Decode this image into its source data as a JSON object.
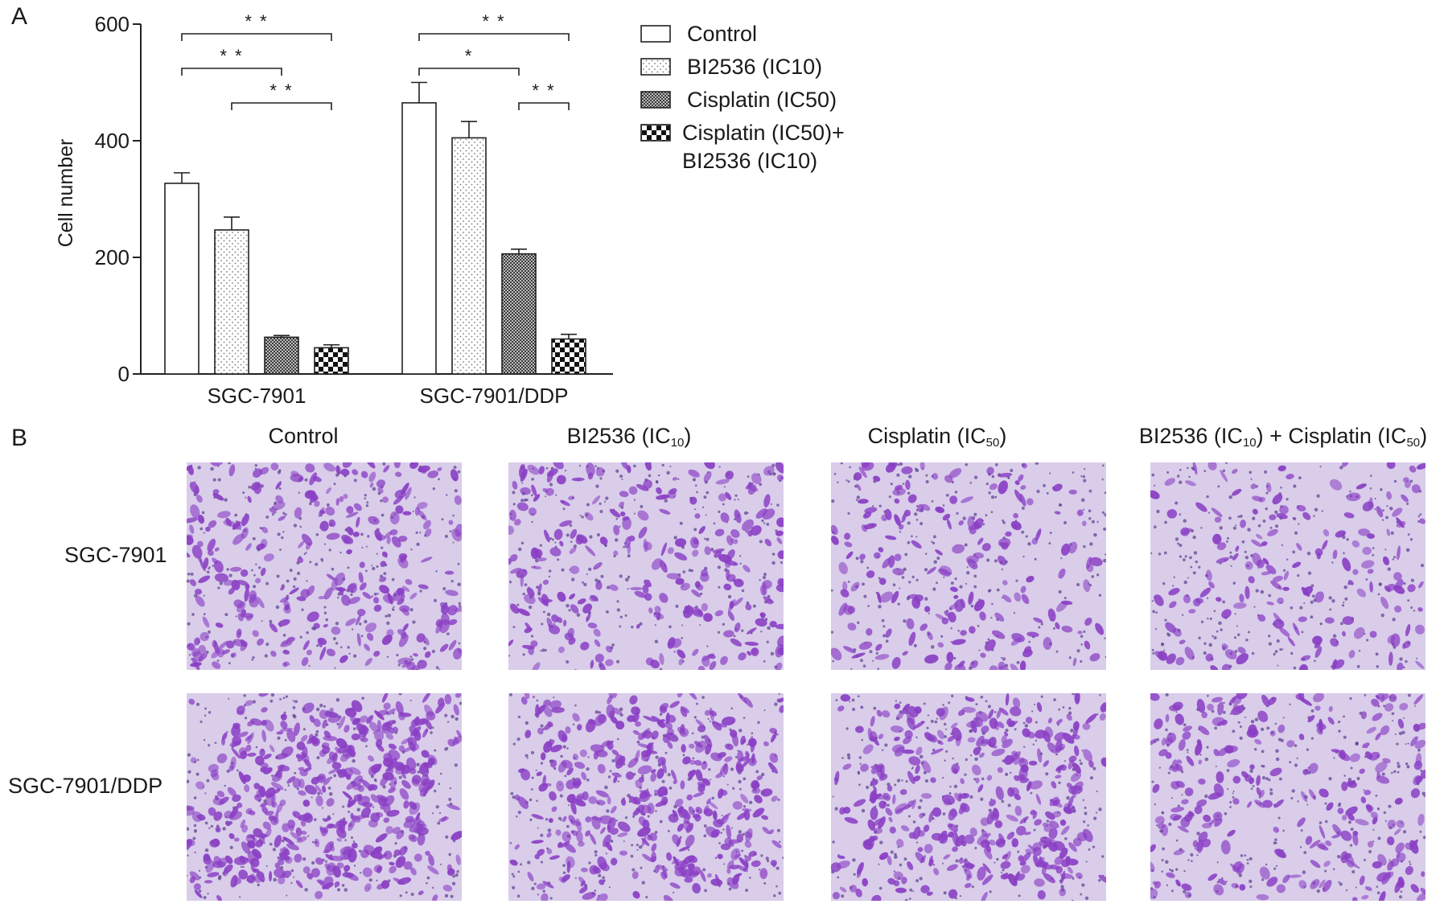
{
  "panel_a_label": "A",
  "panel_b_label": "B",
  "chart_data": {
    "type": "bar",
    "title": "",
    "xlabel": "",
    "ylabel": "Cell number",
    "ylim": [
      0,
      600
    ],
    "yticks": [
      0,
      200,
      400,
      600
    ],
    "categories": [
      "SGC-7901",
      "SGC-7901/DDP"
    ],
    "series": [
      {
        "name": "Control",
        "values": [
          327,
          465
        ],
        "errors": [
          18,
          35
        ],
        "pattern": "plain"
      },
      {
        "name": "BI2536 (IC10)",
        "values": [
          247,
          405
        ],
        "errors": [
          22,
          28
        ],
        "pattern": "dots"
      },
      {
        "name": "Cisplatin (IC50)",
        "values": [
          63,
          206
        ],
        "errors": [
          3,
          8
        ],
        "pattern": "dense"
      },
      {
        "name": "Cisplatin (IC50)+\nBI2536 (IC10)",
        "values": [
          45,
          60
        ],
        "errors": [
          5,
          8
        ],
        "pattern": "checker"
      }
    ],
    "significance": [
      {
        "group": 0,
        "from": 0,
        "to": 3,
        "label": "* *"
      },
      {
        "group": 0,
        "from": 0,
        "to": 2,
        "label": "* *"
      },
      {
        "group": 0,
        "from": 1,
        "to": 3,
        "label": "* *"
      },
      {
        "group": 1,
        "from": 0,
        "to": 3,
        "label": "* *"
      },
      {
        "group": 1,
        "from": 0,
        "to": 2,
        "label": "*"
      },
      {
        "group": 1,
        "from": 2,
        "to": 3,
        "label": "* *"
      }
    ],
    "legend_position": "top-right",
    "grid": false
  },
  "panel_b": {
    "columns": [
      {
        "text": "Control",
        "sub1": "",
        "mid": "",
        "sub2": "",
        "end": ""
      },
      {
        "text": "BI2536 (IC",
        "sub1": "10",
        "mid": ")",
        "sub2": "",
        "end": ""
      },
      {
        "text": "Cisplatin (IC",
        "sub1": "50",
        "mid": ")",
        "sub2": "",
        "end": ""
      },
      {
        "text": "BI2536 (IC",
        "sub1": "10",
        "mid": ") + Cisplatin (IC",
        "sub2": "50",
        "end": ")"
      }
    ],
    "rows": [
      "SGC-7901",
      "SGC-7901/DDP"
    ],
    "stain_color": "#8a3fc4",
    "background_color": "#d9cdea",
    "density": [
      [
        0.55,
        0.45,
        0.3,
        0.25
      ],
      [
        0.95,
        0.75,
        0.7,
        0.45
      ]
    ]
  }
}
